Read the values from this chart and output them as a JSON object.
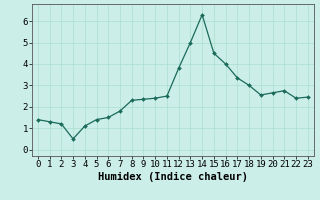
{
  "x": [
    0,
    1,
    2,
    3,
    4,
    5,
    6,
    7,
    8,
    9,
    10,
    11,
    12,
    13,
    14,
    15,
    16,
    17,
    18,
    19,
    20,
    21,
    22,
    23
  ],
  "y": [
    1.4,
    1.3,
    1.2,
    0.5,
    1.1,
    1.4,
    1.5,
    1.8,
    2.3,
    2.35,
    2.4,
    2.5,
    3.8,
    5.0,
    6.3,
    4.5,
    4.0,
    3.35,
    3.0,
    2.55,
    2.65,
    2.75,
    2.4,
    2.45
  ],
  "xlabel": "Humidex (Indice chaleur)",
  "ylabel": "",
  "xlim": [
    -0.5,
    23.5
  ],
  "ylim": [
    -0.3,
    6.8
  ],
  "yticks": [
    0,
    1,
    2,
    3,
    4,
    5,
    6
  ],
  "xticks": [
    0,
    1,
    2,
    3,
    4,
    5,
    6,
    7,
    8,
    9,
    10,
    11,
    12,
    13,
    14,
    15,
    16,
    17,
    18,
    19,
    20,
    21,
    22,
    23
  ],
  "line_color": "#1a6b5a",
  "marker_color": "#1a6b5a",
  "bg_color": "#cceee8",
  "grid_color": "#aaddcc",
  "label_fontsize": 7.5,
  "tick_fontsize": 6.5
}
